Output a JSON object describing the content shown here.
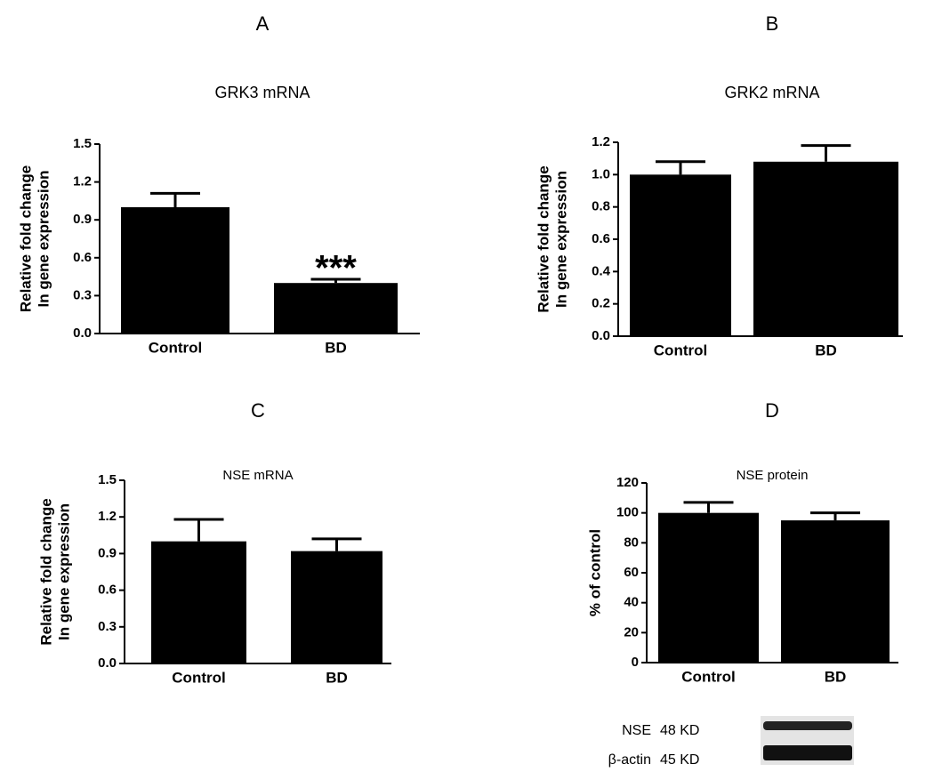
{
  "chart_data": [
    {
      "type": "bar",
      "panel": "A",
      "title": "GRK3 mRNA",
      "ylabel": [
        "Relative fold change",
        "In gene expression"
      ],
      "categories": [
        "Control",
        "BD"
      ],
      "values": [
        1.0,
        0.4
      ],
      "errors": [
        0.11,
        0.03
      ],
      "color": "#000000",
      "ylim": [
        0,
        1.5
      ],
      "yticks": [
        {
          "value": 0,
          "label": "0.0"
        },
        0.3,
        0.6,
        0.9,
        1.2,
        1.5
      ],
      "annotation": "***"
    },
    {
      "type": "bar",
      "panel": "B",
      "title": "GRK2 mRNA",
      "ylabel": [
        "Relative fold change",
        "In gene expression"
      ],
      "categories": [
        "Control",
        "BD"
      ],
      "values": [
        1.0,
        1.08
      ],
      "errors": [
        0.08,
        0.1
      ],
      "color": "#000000",
      "ylim": [
        0,
        1.2
      ],
      "yticks": [
        {
          "value": 0,
          "label": "0.0"
        },
        0.2,
        0.4,
        0.6,
        0.8,
        {
          "value": 1,
          "label": "1.0"
        },
        1.2
      ]
    },
    {
      "type": "bar",
      "panel": "C",
      "title": "NSE mRNA",
      "ylabel": [
        "Relative fold change",
        "In gene expression"
      ],
      "categories": [
        "Control",
        "BD"
      ],
      "values": [
        1.0,
        0.92
      ],
      "errors": [
        0.18,
        0.1
      ],
      "color": "#000000",
      "ylim": [
        0,
        1.5
      ],
      "yticks": [
        {
          "value": 0,
          "label": "0.0"
        },
        0.3,
        0.6,
        0.9,
        1.2,
        1.5
      ]
    },
    {
      "type": "bar",
      "panel": "D",
      "title": "NSE protein",
      "ylabel": [
        "% of control"
      ],
      "categories": [
        "Control",
        "BD"
      ],
      "values": [
        100,
        95
      ],
      "errors": [
        7,
        5
      ],
      "color": "#000000",
      "ylim": [
        0,
        120
      ],
      "yticks": [
        0,
        20,
        40,
        60,
        80,
        100,
        120
      ],
      "blot": [
        {
          "label": "NSE",
          "size": "48 KD"
        },
        {
          "label": "β-actin",
          "size": "45 KD"
        }
      ]
    }
  ]
}
